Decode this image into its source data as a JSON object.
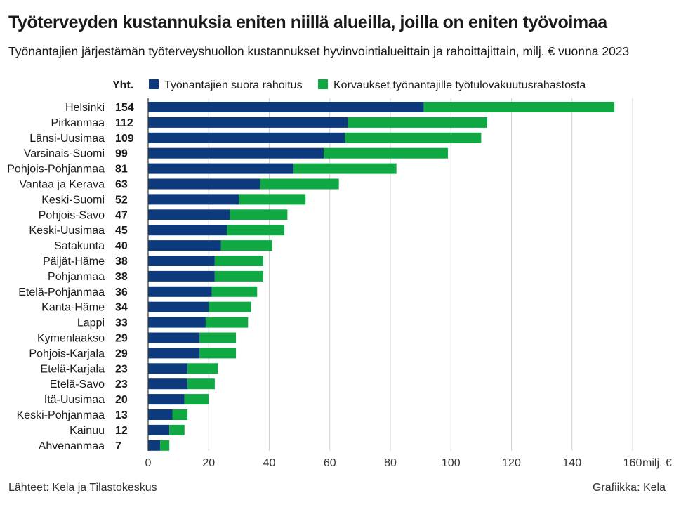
{
  "title": "Työterveyden kustannuksia eniten niillä alueilla, joilla on eniten työvoimaa",
  "subtitle": "Työnantajien järjestämän työterveyshuollon kustannukset hyvinvointialueittain ja rahoittajittain, milj. € vuonna 2023",
  "footer": {
    "source": "Lähteet: Kela ja Tilastokeskus",
    "credit": "Grafiikka: Kela"
  },
  "colors": {
    "series1": "#0d3a7c",
    "series2": "#10a843",
    "grid": "#d0d0d0"
  },
  "chart_data": {
    "type": "bar",
    "orientation": "horizontal",
    "stacked": true,
    "total_column_header": "Yht.",
    "x_unit": "milj. €",
    "xlim": [
      0,
      160
    ],
    "x_ticks": [
      0,
      20,
      40,
      60,
      80,
      100,
      120,
      140,
      160
    ],
    "grid": true,
    "legend_position": "top",
    "categories": [
      "Helsinki",
      "Pirkanmaa",
      "Länsi-Uusimaa",
      "Varsinais-Suomi",
      "Pohjois-Pohjanmaa",
      "Vantaa ja Kerava",
      "Keski-Suomi",
      "Pohjois-Savo",
      "Keski-Uusimaa",
      "Satakunta",
      "Päijät-Häme",
      "Pohjanmaa",
      "Etelä-Pohjanmaa",
      "Kanta-Häme",
      "Lappi",
      "Kymenlaakso",
      "Pohjois-Karjala",
      "Etelä-Karjala",
      "Etelä-Savo",
      "Itä-Uusimaa",
      "Keski-Pohjanmaa",
      "Kainuu",
      "Ahvenanmaa"
    ],
    "totals": [
      154,
      112,
      109,
      99,
      81,
      63,
      52,
      47,
      45,
      40,
      38,
      38,
      36,
      34,
      33,
      29,
      29,
      23,
      23,
      20,
      13,
      12,
      7
    ],
    "series": [
      {
        "name": "Työnantajien suora rahoitus",
        "values": [
          91,
          66,
          65,
          58,
          48,
          37,
          30,
          27,
          26,
          24,
          22,
          22,
          21,
          20,
          19,
          17,
          17,
          13,
          13,
          12,
          8,
          7,
          4
        ]
      },
      {
        "name": "Korvaukset työnantajille työtulovakuutusrahastosta",
        "values": [
          63,
          46,
          45,
          41,
          34,
          26,
          22,
          19,
          19,
          17,
          16,
          16,
          15,
          14,
          14,
          12,
          12,
          10,
          9,
          8,
          5,
          5,
          3
        ]
      }
    ]
  }
}
